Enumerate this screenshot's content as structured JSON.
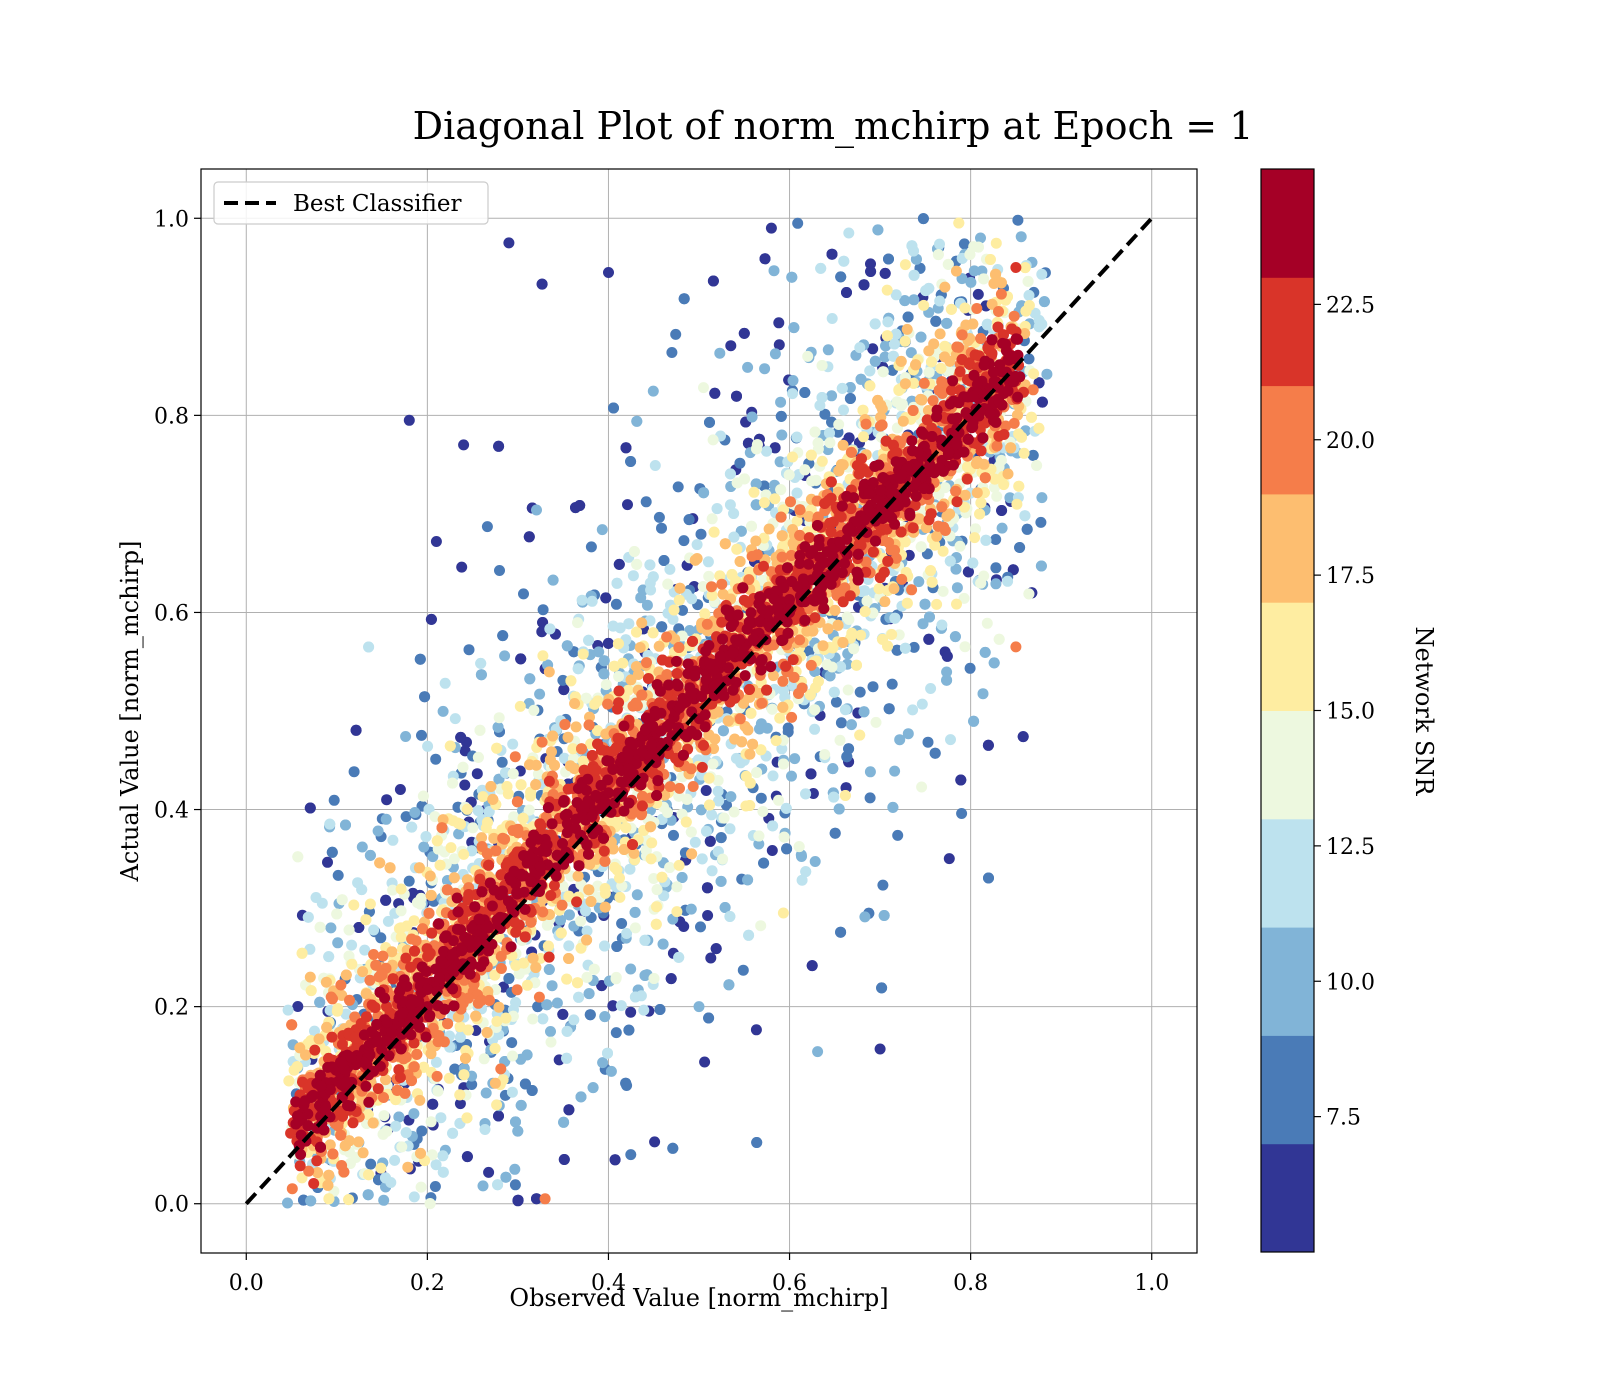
{
  "chart_data": {
    "type": "scatter",
    "title": "Diagonal Plot of norm_mchirp at Epoch = 1",
    "xlabel": "Observed Value [norm_mchirp]",
    "ylabel": "Actual Value [norm_mchirp]",
    "xlim": [
      -0.05,
      1.05
    ],
    "ylim": [
      -0.05,
      1.05
    ],
    "xticks": [
      "0.0",
      "0.2",
      "0.4",
      "0.6",
      "0.8",
      "1.0"
    ],
    "yticks": [
      "0.0",
      "0.2",
      "0.4",
      "0.6",
      "0.8",
      "1.0"
    ],
    "grid": true,
    "legend": {
      "placement": "top-left",
      "entries": [
        "Best Classifier"
      ]
    },
    "reference_line": {
      "name": "Best Classifier",
      "from": [
        0.0,
        0.0
      ],
      "to": [
        1.0,
        1.0
      ],
      "style": "dashed",
      "color": "#000000"
    },
    "colorbar": {
      "label": "Network SNR",
      "range": [
        5.0,
        25.0
      ],
      "ticks": [
        "7.5",
        "10.0",
        "12.5",
        "15.0",
        "17.5",
        "20.0",
        "22.5"
      ],
      "bins": [
        {
          "from": 5.0,
          "to": 7.0,
          "color": "#313695"
        },
        {
          "from": 7.0,
          "to": 9.0,
          "color": "#4a7bb7"
        },
        {
          "from": 9.0,
          "to": 11.0,
          "color": "#81b4d7"
        },
        {
          "from": 11.0,
          "to": 13.0,
          "color": "#bde2ee"
        },
        {
          "from": 13.0,
          "to": 15.0,
          "color": "#edf8df"
        },
        {
          "from": 15.0,
          "to": 17.0,
          "color": "#feeda1"
        },
        {
          "from": 17.0,
          "to": 19.0,
          "color": "#fdbe70"
        },
        {
          "from": 19.0,
          "to": 21.0,
          "color": "#f57d4a"
        },
        {
          "from": 21.0,
          "to": 23.0,
          "color": "#d93429"
        },
        {
          "from": 23.0,
          "to": 25.0,
          "color": "#a50026"
        }
      ]
    },
    "point_cloud": {
      "approx_points": 9000,
      "x_range": [
        0.05,
        0.88
      ],
      "y_range": [
        0.0,
        1.0
      ],
      "color_trend": "high SNR (dark red) concentrated along the diagonal; low SNR (dark blue) scattered widely around it",
      "sample_points": [
        {
          "x": 0.06,
          "y": 0.05,
          "snr": 24
        },
        {
          "x": 0.2,
          "y": 0.2,
          "snr": 24
        },
        {
          "x": 0.4,
          "y": 0.4,
          "snr": 24
        },
        {
          "x": 0.6,
          "y": 0.6,
          "snr": 24
        },
        {
          "x": 0.8,
          "y": 0.8,
          "snr": 24
        },
        {
          "x": 0.85,
          "y": 0.95,
          "snr": 22
        },
        {
          "x": 0.3,
          "y": 0.38,
          "snr": 20
        },
        {
          "x": 0.5,
          "y": 0.55,
          "snr": 18
        },
        {
          "x": 0.7,
          "y": 0.64,
          "snr": 16
        },
        {
          "x": 0.45,
          "y": 0.33,
          "snr": 14
        },
        {
          "x": 0.55,
          "y": 0.45,
          "snr": 12
        },
        {
          "x": 0.5,
          "y": 0.2,
          "snr": 10
        },
        {
          "x": 0.42,
          "y": 0.12,
          "snr": 8
        },
        {
          "x": 0.29,
          "y": 0.975,
          "snr": 6
        },
        {
          "x": 0.18,
          "y": 0.795,
          "snr": 6
        },
        {
          "x": 0.21,
          "y": 0.672,
          "snr": 6
        },
        {
          "x": 0.4,
          "y": 0.945,
          "snr": 6
        },
        {
          "x": 0.58,
          "y": 0.99,
          "snr": 6
        },
        {
          "x": 0.3,
          "y": 0.003,
          "snr": 6
        },
        {
          "x": 0.7,
          "y": 0.157,
          "snr": 6
        },
        {
          "x": 0.79,
          "y": 0.396,
          "snr": 8
        },
        {
          "x": 0.85,
          "y": 0.565,
          "snr": 20
        },
        {
          "x": 0.24,
          "y": 0.77,
          "snr": 6
        },
        {
          "x": 0.155,
          "y": 0.41,
          "snr": 6
        },
        {
          "x": 0.33,
          "y": 0.005,
          "snr": 19
        }
      ]
    }
  }
}
